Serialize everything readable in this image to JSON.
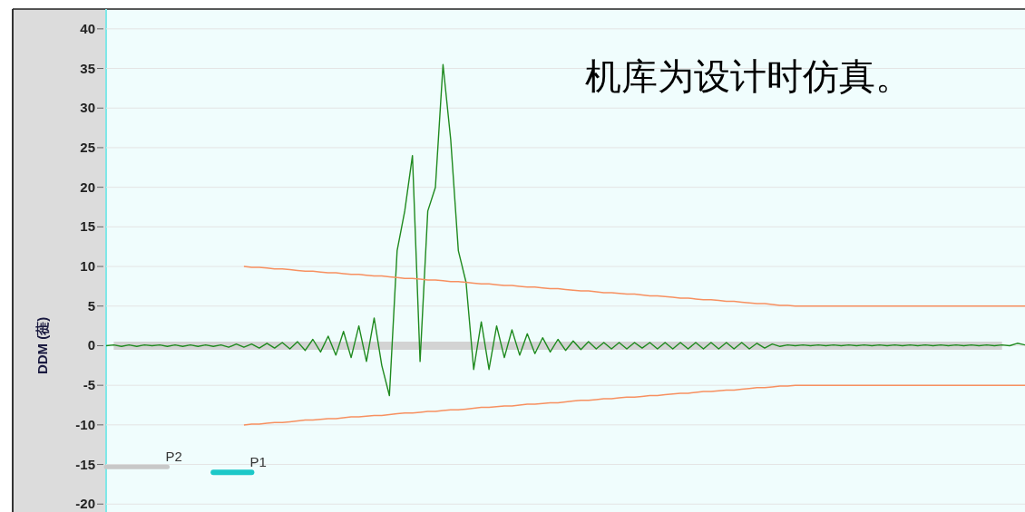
{
  "chart_data": {
    "type": "line",
    "ylabel": "DDM (蓰)",
    "annotations": [
      "机库为设计时仿真。"
    ],
    "categories": [
      null,
      null,
      null,
      null,
      null,
      null,
      null,
      null,
      null,
      null,
      null,
      null,
      null,
      null,
      null,
      null,
      null,
      null,
      null,
      null,
      null,
      null,
      null,
      null,
      null,
      null,
      null,
      null,
      null,
      null,
      null,
      null,
      null,
      null,
      null,
      null,
      null,
      null,
      null,
      null,
      null,
      null,
      null,
      null,
      null,
      null,
      null,
      null,
      null,
      null,
      null,
      null,
      null,
      null,
      null,
      null,
      null,
      null,
      null,
      null,
      null,
      null,
      null,
      null,
      null,
      null,
      null,
      null,
      null,
      null,
      null,
      null,
      null,
      null,
      null,
      null,
      null,
      null,
      null,
      null,
      null,
      null,
      null,
      null,
      null,
      null,
      null,
      null,
      null,
      null,
      null,
      null,
      null,
      null,
      null,
      null,
      null,
      null,
      null,
      null,
      null,
      null,
      null,
      null,
      null,
      null,
      null,
      null,
      null,
      null,
      null,
      null,
      null,
      null,
      null,
      null,
      null,
      null,
      null,
      null,
      null
    ],
    "ylim": [
      -21,
      42.5
    ],
    "yticks": [
      -20,
      -15,
      -10,
      -5,
      0,
      5,
      10,
      15,
      20,
      25,
      30,
      35,
      40
    ],
    "grid": "y",
    "tick_labels": "y",
    "line_style": "solid",
    "marker": "none",
    "series": [
      {
        "color": "#d3d3d3",
        "values": [
          null,
          0,
          0,
          0,
          0,
          0,
          0,
          0,
          0,
          0,
          0,
          0,
          0,
          0,
          0,
          0,
          0,
          0,
          0,
          0,
          0,
          0,
          0,
          0,
          0,
          0,
          0,
          0,
          0,
          0,
          0,
          0,
          0,
          0,
          0,
          0,
          0,
          0,
          0,
          0,
          0,
          0,
          0,
          0,
          0,
          0,
          0,
          0,
          0,
          0,
          0,
          0,
          0,
          0,
          0,
          0,
          0,
          0,
          0,
          0,
          0,
          0,
          0,
          0,
          0,
          0,
          0,
          0,
          0,
          0,
          0,
          0,
          0,
          0,
          0,
          0,
          0,
          0,
          0,
          0,
          0,
          0,
          0,
          0,
          0,
          0,
          0,
          0,
          0,
          0,
          0,
          0,
          0,
          0,
          0,
          0,
          0,
          0,
          0,
          0,
          0,
          0,
          0,
          0,
          0,
          0,
          0,
          0,
          0,
          0,
          0,
          0,
          0,
          0,
          0,
          0,
          0,
          0,
          null,
          null,
          null
        ]
      },
      {
        "color": "#1f8a1f",
        "values": [
          0,
          0.1,
          -0.1,
          0.1,
          -0.1,
          0.1,
          0,
          0.1,
          -0.1,
          0.1,
          -0.1,
          0.1,
          -0.1,
          0.1,
          -0.1,
          0.1,
          -0.2,
          0.2,
          -0.2,
          0.2,
          -0.3,
          0.3,
          -0.3,
          0.4,
          -0.4,
          0.5,
          -0.6,
          0.8,
          -0.8,
          1.2,
          -1.2,
          1.8,
          -1.5,
          2.5,
          -2,
          3.5,
          -2.5,
          -6.3,
          12,
          17,
          24,
          -2,
          17,
          20,
          35.5,
          26,
          12,
          8,
          -3,
          3,
          -3,
          2.5,
          -1.5,
          2,
          -1.2,
          1.5,
          -1,
          1,
          -0.8,
          0.8,
          -0.6,
          0.6,
          -0.5,
          0.5,
          -0.4,
          0.4,
          -0.4,
          0.4,
          -0.4,
          0.4,
          -0.3,
          0.4,
          -0.4,
          0.4,
          -0.4,
          0.4,
          -0.4,
          0.4,
          -0.4,
          0.4,
          -0.4,
          0.4,
          -0.4,
          0.4,
          -0.4,
          0.3,
          -0.3,
          0.2,
          -0.1,
          0.1,
          0,
          0.1,
          0,
          0.1,
          0,
          0.1,
          0,
          0.1,
          0,
          0.1,
          0,
          0.1,
          0,
          0.1,
          0,
          0.1,
          0,
          0.1,
          0,
          0.1,
          0,
          0.1,
          0,
          0.1,
          0,
          0.1,
          0,
          0.1,
          0,
          0.3,
          0.1
        ]
      },
      {
        "color": "#f79060",
        "values": [
          null,
          null,
          null,
          null,
          null,
          null,
          null,
          null,
          null,
          null,
          null,
          null,
          null,
          null,
          null,
          null,
          null,
          null,
          10,
          9.9,
          9.9,
          9.8,
          9.7,
          9.7,
          9.6,
          9.5,
          9.4,
          9.4,
          9.3,
          9.2,
          9.2,
          9.1,
          9.0,
          9.0,
          8.9,
          8.8,
          8.8,
          8.7,
          8.6,
          8.5,
          8.5,
          8.4,
          8.3,
          8.3,
          8.2,
          8.1,
          8.1,
          8.0,
          7.9,
          7.8,
          7.8,
          7.7,
          7.6,
          7.6,
          7.5,
          7.4,
          7.4,
          7.3,
          7.2,
          7.2,
          7.1,
          7.0,
          6.9,
          6.9,
          6.8,
          6.7,
          6.7,
          6.6,
          6.5,
          6.5,
          6.4,
          6.3,
          6.3,
          6.2,
          6.1,
          6.0,
          6.0,
          5.9,
          5.8,
          5.8,
          5.7,
          5.6,
          5.6,
          5.5,
          5.4,
          5.3,
          5.3,
          5.2,
          5.1,
          5.1,
          5,
          5,
          5,
          5,
          5,
          5,
          5,
          5,
          5,
          5,
          5,
          5,
          5,
          5,
          5,
          5,
          5,
          5,
          5,
          5,
          5,
          5,
          5,
          5,
          5,
          5,
          5,
          5,
          5,
          5,
          5
        ]
      },
      {
        "color": "#f79060",
        "values": [
          null,
          null,
          null,
          null,
          null,
          null,
          null,
          null,
          null,
          null,
          null,
          null,
          null,
          null,
          null,
          null,
          null,
          null,
          -10,
          -9.9,
          -9.9,
          -9.8,
          -9.7,
          -9.7,
          -9.6,
          -9.5,
          -9.4,
          -9.4,
          -9.3,
          -9.2,
          -9.2,
          -9.1,
          -9.0,
          -9.0,
          -8.9,
          -8.8,
          -8.8,
          -8.7,
          -8.6,
          -8.5,
          -8.5,
          -8.4,
          -8.3,
          -8.3,
          -8.2,
          -8.1,
          -8.1,
          -8.0,
          -7.9,
          -7.8,
          -7.8,
          -7.7,
          -7.6,
          -7.6,
          -7.5,
          -7.4,
          -7.4,
          -7.3,
          -7.2,
          -7.2,
          -7.1,
          -7.0,
          -6.9,
          -6.9,
          -6.8,
          -6.7,
          -6.7,
          -6.6,
          -6.5,
          -6.5,
          -6.4,
          -6.3,
          -6.3,
          -6.2,
          -6.1,
          -6.0,
          -6.0,
          -5.9,
          -5.8,
          -5.8,
          -5.7,
          -5.6,
          -5.6,
          -5.5,
          -5.4,
          -5.3,
          -5.3,
          -5.2,
          -5.1,
          -5.1,
          -5,
          -5,
          -5,
          -5,
          -5,
          -5,
          -5,
          -5,
          -5,
          -5,
          -5,
          -5,
          -5,
          -5,
          -5,
          -5,
          -5,
          -5,
          -5,
          -5,
          -5,
          -5,
          -5,
          -5,
          -5,
          -5,
          -5,
          -5,
          -5,
          -5,
          -5
        ]
      },
      {
        "name": "P2",
        "color": "#c8c8c8",
        "values": [
          -15.3,
          -15.3,
          -15.3,
          -15.3,
          -15.3,
          -15.3,
          -15.3,
          -15.3,
          -15.3,
          null,
          null,
          null,
          null,
          null,
          null,
          null,
          null,
          null,
          null,
          null,
          null,
          null,
          null,
          null,
          null,
          null,
          null,
          null,
          null,
          null,
          null,
          null,
          null,
          null,
          null,
          null,
          null,
          null,
          null,
          null,
          null,
          null,
          null,
          null,
          null,
          null,
          null,
          null,
          null,
          null,
          null,
          null,
          null,
          null,
          null,
          null,
          null,
          null,
          null,
          null,
          null,
          null,
          null,
          null,
          null,
          null,
          null,
          null,
          null,
          null,
          null,
          null,
          null,
          null,
          null,
          null,
          null,
          null,
          null,
          null,
          null,
          null,
          null,
          null,
          null,
          null,
          null,
          null,
          null,
          null,
          null,
          null,
          null,
          null,
          null,
          null,
          null,
          null,
          null,
          null,
          null,
          null,
          null,
          null,
          null,
          null,
          null,
          null,
          null,
          null,
          null,
          null,
          null,
          null,
          null,
          null,
          null,
          null,
          null,
          null,
          null
        ]
      },
      {
        "name": "P1",
        "color": "#1cc8c8",
        "values": [
          null,
          null,
          null,
          null,
          null,
          null,
          null,
          null,
          null,
          null,
          null,
          null,
          null,
          null,
          -16,
          -16,
          -16,
          -16,
          -16,
          -16,
          null,
          null,
          null,
          null,
          null,
          null,
          null,
          null,
          null,
          null,
          null,
          null,
          null,
          null,
          null,
          null,
          null,
          null,
          null,
          null,
          null,
          null,
          null,
          null,
          null,
          null,
          null,
          null,
          null,
          null,
          null,
          null,
          null,
          null,
          null,
          null,
          null,
          null,
          null,
          null,
          null,
          null,
          null,
          null,
          null,
          null,
          null,
          null,
          null,
          null,
          null,
          null,
          null,
          null,
          null,
          null,
          null,
          null,
          null,
          null,
          null,
          null,
          null,
          null,
          null,
          null,
          null,
          null,
          null,
          null,
          null,
          null,
          null,
          null,
          null,
          null,
          null,
          null,
          null,
          null,
          null,
          null,
          null,
          null,
          null,
          null,
          null,
          null,
          null,
          null,
          null,
          null,
          null,
          null,
          null,
          null,
          null,
          null,
          null,
          null,
          null
        ]
      }
    ]
  }
}
